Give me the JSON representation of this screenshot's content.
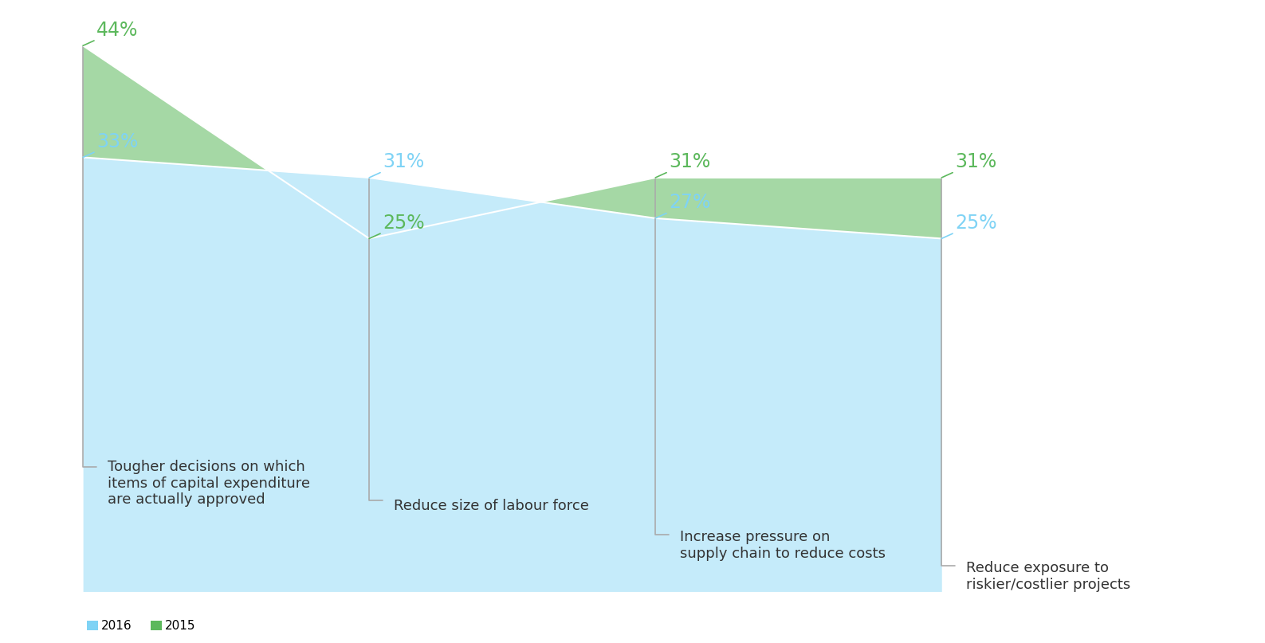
{
  "chart_data": {
    "type": "line",
    "categories": [
      "Tougher decisions on which\nitems of capital expenditure\nare actually approved",
      "Reduce size of labour force",
      "Increase pressure on\nsupply chain to reduce costs",
      "Reduce exposure to\nriskier/costlier projects"
    ],
    "series": [
      {
        "name": "2016",
        "color": "#7fd3f5",
        "values": [
          33,
          31,
          27,
          25
        ],
        "value_labels": [
          "33%",
          "31%",
          "27%",
          "25%"
        ]
      },
      {
        "name": "2015",
        "color": "#5cb85c",
        "values": [
          44,
          25,
          31,
          31
        ],
        "value_labels": [
          "44%",
          "25%",
          "31%",
          "31%"
        ]
      }
    ],
    "data_labels": true,
    "tick_labels": false,
    "grid": false,
    "legend": "lower left"
  }
}
